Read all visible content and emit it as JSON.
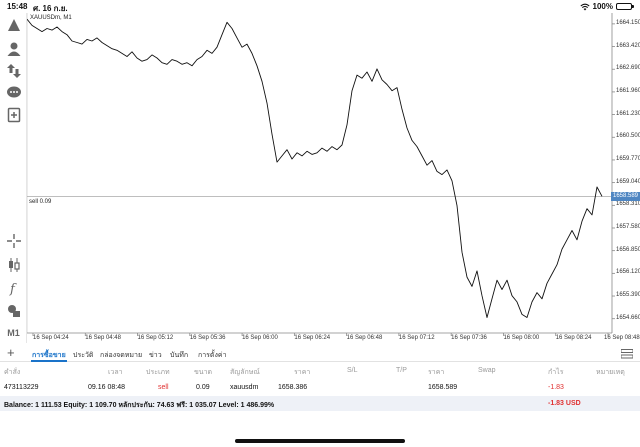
{
  "status_bar": {
    "time": "15:48",
    "date": "ศ. 16 ก.ย.",
    "battery": "100%"
  },
  "toolbar": {
    "timeframe": "M1"
  },
  "chart": {
    "title": "XAUUSDm, M1",
    "order_line_label": "sell 0.09",
    "current_price": "1658.589",
    "line_color": "#111111",
    "price_tag_color": "#4f86c2"
  },
  "chart_data": {
    "type": "line",
    "title": "XAUUSDm, M1",
    "x_ticks": [
      "16 Sep 04:24",
      "16 Sep 04:48",
      "16 Sep 05:12",
      "16 Sep 05:36",
      "16 Sep 06:00",
      "16 Sep 06:24",
      "16 Sep 06:48",
      "16 Sep 07:12",
      "16 Sep 07:36",
      "16 Sep 08:00",
      "16 Sep 08:24",
      "16 Sep 08:48"
    ],
    "y_ticks": [
      "1664.150",
      "1663.420",
      "1662.690",
      "1661.960",
      "1661.230",
      "1660.500",
      "1659.770",
      "1659.040",
      "1658.310",
      "1657.580",
      "1656.850",
      "1656.120",
      "1655.390",
      "1654.660"
    ],
    "ylim": [
      1654.2,
      1664.5
    ],
    "order_line": 1658.589,
    "grid": false,
    "series": [
      {
        "values": [
          1664.3,
          1664.1,
          1664.0,
          1663.9,
          1664.0,
          1663.95,
          1664.05,
          1663.9,
          1663.8,
          1663.6,
          1663.55,
          1663.5,
          1663.65,
          1663.6,
          1663.7,
          1663.55,
          1663.45,
          1663.35,
          1663.3,
          1663.2,
          1663.1,
          1663.25,
          1663.05,
          1662.95,
          1663.0,
          1663.15,
          1663.05,
          1662.9,
          1662.85,
          1663.0,
          1662.95,
          1662.85,
          1662.9,
          1662.8,
          1663.0,
          1663.1,
          1663.3,
          1663.2,
          1663.4,
          1663.8,
          1664.2,
          1664.0,
          1663.7,
          1663.4,
          1663.5,
          1663.2,
          1662.8,
          1662.3,
          1661.6,
          1660.6,
          1659.7,
          1659.9,
          1660.1,
          1659.8,
          1660.0,
          1659.9,
          1660.05,
          1659.95,
          1660.0,
          1660.15,
          1660.05,
          1660.2,
          1660.1,
          1660.25,
          1660.9,
          1662.0,
          1662.5,
          1662.4,
          1662.6,
          1662.3,
          1662.7,
          1662.35,
          1662.2,
          1662.0,
          1662.1,
          1661.4,
          1660.8,
          1660.4,
          1660.2,
          1659.9,
          1659.6,
          1659.75,
          1659.4,
          1659.3,
          1659.45,
          1659.1,
          1658.3,
          1656.8,
          1656.0,
          1655.7,
          1656.2,
          1655.4,
          1654.7,
          1655.3,
          1655.9,
          1655.6,
          1655.9,
          1655.4,
          1655.2,
          1654.8,
          1654.7,
          1655.2,
          1655.5,
          1655.3,
          1655.8,
          1656.1,
          1656.4,
          1656.9,
          1657.2,
          1657.5,
          1657.2,
          1657.8,
          1658.2,
          1658.0,
          1658.9,
          1658.6
        ]
      }
    ]
  },
  "tabs": [
    {
      "label": "การซื้อขาย",
      "active": true
    },
    {
      "label": "ประวัติ",
      "active": false
    },
    {
      "label": "กล่องจดหมาย",
      "active": false
    },
    {
      "label": "ข่าว",
      "active": false
    },
    {
      "label": "บันทึก",
      "active": false
    },
    {
      "label": "การตั้งค่า",
      "active": false
    }
  ],
  "table": {
    "headers": [
      "คำสั่ง",
      "เวลา",
      "ประเภท",
      "ขนาด",
      "สัญลักษณ์",
      "ราคา",
      "S/L",
      "T/P",
      "ราคา",
      "Swap",
      "กำไร",
      "หมายเหตุ"
    ],
    "row": {
      "order": "473113229",
      "time": "09.16 08:48",
      "type": "sell",
      "size": "0.09",
      "symbol": "xauusdm",
      "open_price": "1658.386",
      "sl": "",
      "tp": "",
      "current_price": "1658.589",
      "swap": "",
      "profit": "-1.83",
      "comment": ""
    }
  },
  "balance": {
    "text": "Balance: 1 111.53 Equity: 1 109.70 หลักประกัน: 74.63 ฟรี: 1 035.07 Level: 1 486.99%",
    "total": "-1.83  USD"
  }
}
